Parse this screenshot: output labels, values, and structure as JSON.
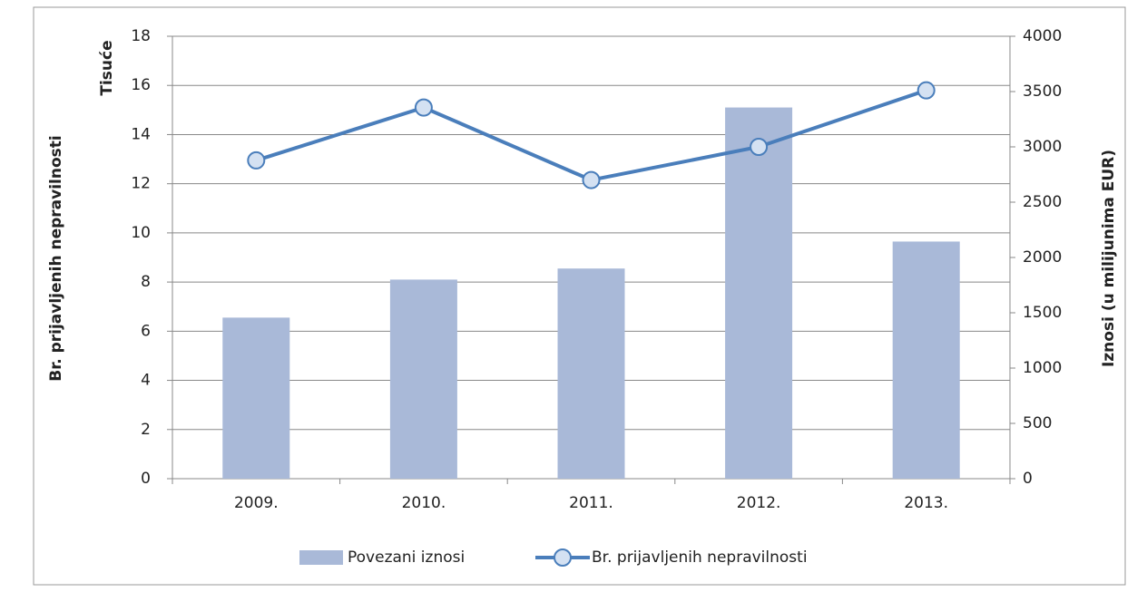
{
  "chart_data": {
    "type": "combo",
    "categories": [
      "2009.",
      "2010.",
      "2011.",
      "2012.",
      "2013."
    ],
    "ylabel": "Br. prijavljenih nepravilnosti",
    "ylabel_unit": "Tisuće",
    "y2label": "Iznosi (u milijunima EUR)",
    "ylim": [
      0,
      18
    ],
    "yticks": [
      0,
      2,
      4,
      6,
      8,
      10,
      12,
      14,
      16,
      18
    ],
    "y2lim": [
      0,
      4000
    ],
    "y2ticks": [
      0,
      500,
      1000,
      1500,
      2000,
      2500,
      3000,
      3500,
      4000
    ],
    "grid": true,
    "legend": "bottom",
    "series": [
      {
        "name": "Povezani iznosi",
        "type": "bar",
        "axis": "y2",
        "color": "#a9b9d8",
        "values": [
          1456,
          1800,
          1900,
          3356,
          2144
        ]
      },
      {
        "name": "Br. prijavljenih nepravilnosti",
        "type": "line",
        "axis": "y",
        "color": "#4a7ebb",
        "values": [
          12.95,
          15.1,
          12.15,
          13.5,
          15.8
        ]
      }
    ]
  }
}
